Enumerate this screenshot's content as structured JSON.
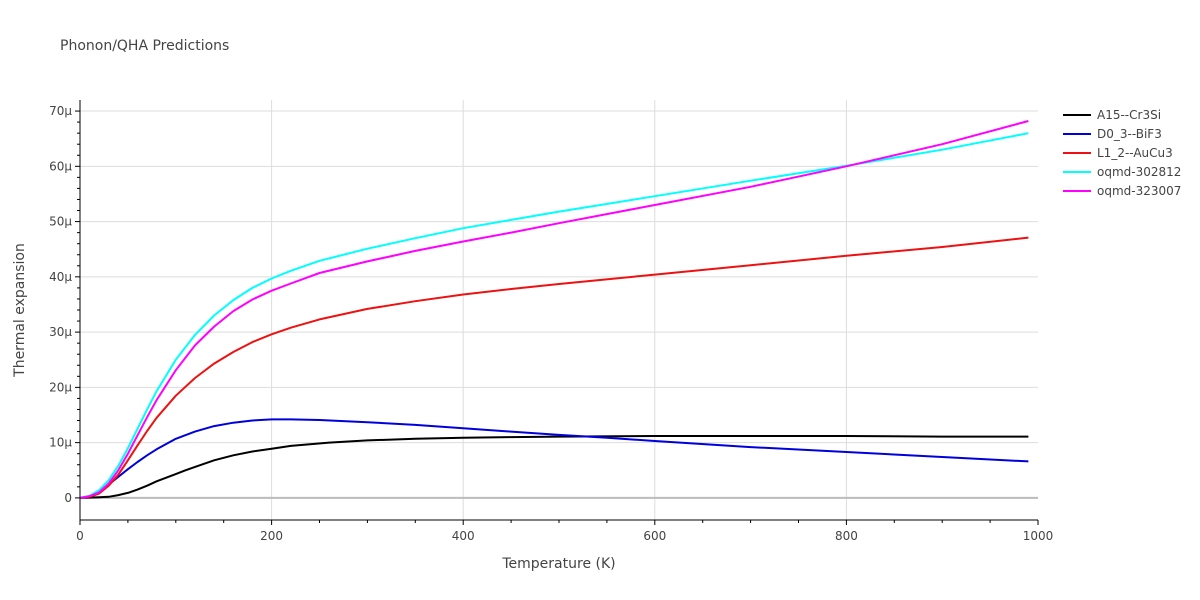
{
  "chart_data": {
    "type": "line",
    "title": "Phonon/QHA Predictions",
    "xlabel": "Temperature (K)",
    "ylabel": "Thermal expansion",
    "xlim": [
      0,
      1000
    ],
    "ylim": [
      -4,
      72
    ],
    "xticks": [
      0,
      200,
      400,
      600,
      800,
      1000
    ],
    "xtick_labels": [
      "0",
      "200",
      "400",
      "600",
      "800",
      "1000"
    ],
    "yticks": [
      0,
      10,
      20,
      30,
      40,
      50,
      60,
      70
    ],
    "ytick_labels": [
      "0",
      "10μ",
      "20μ",
      "30μ",
      "40μ",
      "50μ",
      "60μ",
      "70μ"
    ],
    "grid": true,
    "legend_position": "top-right",
    "series": [
      {
        "name": "A15--Cr3Si",
        "color": "#000000",
        "x": [
          0,
          20,
          30,
          40,
          50,
          60,
          70,
          80,
          100,
          110,
          120,
          140,
          160,
          180,
          200,
          220,
          260,
          300,
          350,
          400,
          450,
          500,
          600,
          700,
          800,
          900,
          990
        ],
        "y": [
          0,
          0.1,
          0.2,
          0.5,
          0.9,
          1.5,
          2.2,
          3.0,
          4.3,
          5.0,
          5.6,
          6.8,
          7.7,
          8.4,
          8.9,
          9.4,
          10.0,
          10.4,
          10.7,
          10.9,
          11.0,
          11.1,
          11.2,
          11.2,
          11.2,
          11.1,
          11.1
        ]
      },
      {
        "name": "D0_3--BiF3",
        "color": "#0000dd",
        "x": [
          0,
          10,
          20,
          30,
          40,
          50,
          60,
          70,
          80,
          100,
          120,
          140,
          160,
          180,
          200,
          220,
          250,
          300,
          350,
          400,
          450,
          500,
          550,
          600,
          700,
          800,
          900,
          990
        ],
        "y": [
          0,
          0.3,
          1.1,
          2.4,
          3.8,
          5.2,
          6.5,
          7.7,
          8.8,
          10.7,
          12.0,
          13.0,
          13.6,
          14.0,
          14.2,
          14.2,
          14.1,
          13.7,
          13.2,
          12.6,
          12.0,
          11.4,
          10.9,
          10.3,
          9.2,
          8.3,
          7.4,
          6.6
        ]
      },
      {
        "name": "L1_2--AuCu3",
        "color": "#ee1111",
        "x": [
          0,
          10,
          20,
          30,
          40,
          50,
          60,
          70,
          80,
          100,
          120,
          140,
          160,
          180,
          200,
          220,
          250,
          300,
          350,
          400,
          450,
          500,
          600,
          700,
          800,
          900,
          990
        ],
        "y": [
          0,
          0.2,
          0.8,
          2.2,
          4.2,
          6.8,
          9.5,
          12.1,
          14.5,
          18.5,
          21.7,
          24.3,
          26.4,
          28.2,
          29.6,
          30.8,
          32.3,
          34.2,
          35.6,
          36.8,
          37.8,
          38.7,
          40.4,
          42.1,
          43.8,
          45.4,
          47.1
        ]
      },
      {
        "name": "oqmd-302812",
        "color": "#00ffff",
        "x": [
          0,
          10,
          20,
          30,
          40,
          50,
          60,
          70,
          80,
          100,
          120,
          140,
          160,
          180,
          200,
          220,
          250,
          300,
          350,
          400,
          450,
          500,
          600,
          700,
          800,
          900,
          990
        ],
        "y": [
          0,
          0.4,
          1.4,
          3.2,
          5.8,
          9.0,
          12.5,
          16.0,
          19.3,
          25.0,
          29.5,
          33.0,
          35.8,
          38.0,
          39.7,
          41.1,
          42.9,
          45.1,
          47.0,
          48.8,
          50.3,
          51.8,
          54.6,
          57.4,
          60.1,
          63.0,
          66.0
        ]
      },
      {
        "name": "oqmd-323007",
        "color": "#ff00ff",
        "x": [
          0,
          10,
          20,
          30,
          40,
          50,
          60,
          70,
          80,
          100,
          120,
          140,
          160,
          180,
          200,
          220,
          250,
          300,
          350,
          400,
          450,
          500,
          600,
          700,
          800,
          900,
          990
        ],
        "y": [
          0,
          0.3,
          1.0,
          2.6,
          5.0,
          8.0,
          11.3,
          14.6,
          17.7,
          23.1,
          27.6,
          31.0,
          33.8,
          35.9,
          37.5,
          38.8,
          40.7,
          42.8,
          44.7,
          46.4,
          48.0,
          49.7,
          53.0,
          56.3,
          60.0,
          64.0,
          68.2
        ]
      }
    ]
  }
}
